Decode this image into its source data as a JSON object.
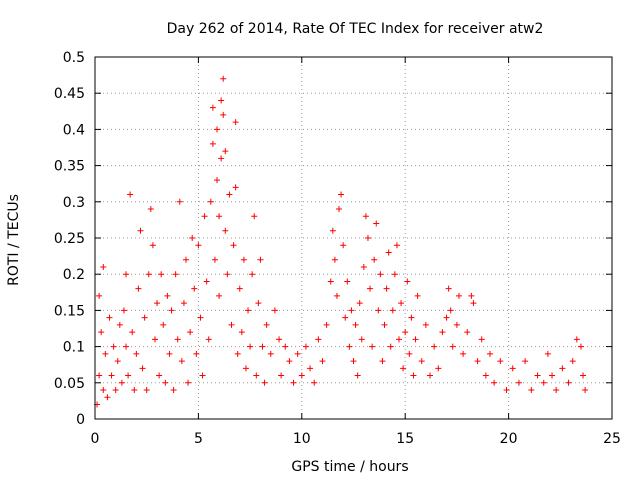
{
  "chart_data": {
    "type": "scatter",
    "title": "Day 262 of 2014, Rate Of TEC Index for receiver atw2",
    "xlabel": "GPS time / hours",
    "ylabel": "ROTI / TECUs",
    "xlim": [
      0,
      25
    ],
    "ylim": [
      0,
      0.5
    ],
    "xticks": [
      0,
      5,
      10,
      15,
      20,
      25
    ],
    "yticks": [
      0,
      0.05,
      0.1,
      0.15,
      0.2,
      0.25,
      0.3,
      0.35,
      0.4,
      0.45,
      0.5
    ],
    "xtick_labels": [
      "0",
      "5",
      "10",
      "15",
      "20",
      "25"
    ],
    "ytick_labels": [
      "0",
      "0.05",
      "0.1",
      "0.15",
      "0.2",
      "0.25",
      "0.3",
      "0.35",
      "0.4",
      "0.45",
      "0.5"
    ],
    "grid": true,
    "legend": "none",
    "marker": "plus",
    "color": "#ff0000",
    "series": [
      {
        "points": [
          [
            0.1,
            0.02
          ],
          [
            0.2,
            0.06
          ],
          [
            0.2,
            0.17
          ],
          [
            0.3,
            0.12
          ],
          [
            0.4,
            0.04
          ],
          [
            0.4,
            0.21
          ],
          [
            0.5,
            0.09
          ],
          [
            0.6,
            0.03
          ],
          [
            0.7,
            0.14
          ],
          [
            0.8,
            0.06
          ],
          [
            0.9,
            0.1
          ],
          [
            1.0,
            0.04
          ],
          [
            1.1,
            0.08
          ],
          [
            1.2,
            0.13
          ],
          [
            1.3,
            0.05
          ],
          [
            1.4,
            0.15
          ],
          [
            1.5,
            0.1
          ],
          [
            1.5,
            0.2
          ],
          [
            1.6,
            0.06
          ],
          [
            1.7,
            0.31
          ],
          [
            1.8,
            0.12
          ],
          [
            1.9,
            0.04
          ],
          [
            2.0,
            0.09
          ],
          [
            2.1,
            0.18
          ],
          [
            2.2,
            0.26
          ],
          [
            2.3,
            0.07
          ],
          [
            2.4,
            0.14
          ],
          [
            2.5,
            0.04
          ],
          [
            2.6,
            0.2
          ],
          [
            2.7,
            0.29
          ],
          [
            2.8,
            0.24
          ],
          [
            2.9,
            0.11
          ],
          [
            3.0,
            0.16
          ],
          [
            3.1,
            0.06
          ],
          [
            3.2,
            0.2
          ],
          [
            3.3,
            0.13
          ],
          [
            3.4,
            0.05
          ],
          [
            3.5,
            0.17
          ],
          [
            3.6,
            0.09
          ],
          [
            3.7,
            0.15
          ],
          [
            3.8,
            0.04
          ],
          [
            3.9,
            0.2
          ],
          [
            4.0,
            0.11
          ],
          [
            4.1,
            0.3
          ],
          [
            4.2,
            0.08
          ],
          [
            4.3,
            0.16
          ],
          [
            4.4,
            0.22
          ],
          [
            4.5,
            0.05
          ],
          [
            4.6,
            0.12
          ],
          [
            4.7,
            0.25
          ],
          [
            4.8,
            0.18
          ],
          [
            4.9,
            0.09
          ],
          [
            5.0,
            0.24
          ],
          [
            5.1,
            0.14
          ],
          [
            5.2,
            0.06
          ],
          [
            5.3,
            0.28
          ],
          [
            5.4,
            0.19
          ],
          [
            5.5,
            0.11
          ],
          [
            5.6,
            0.3
          ],
          [
            5.7,
            0.38
          ],
          [
            5.7,
            0.43
          ],
          [
            5.8,
            0.22
          ],
          [
            5.9,
            0.33
          ],
          [
            5.9,
            0.4
          ],
          [
            6.0,
            0.17
          ],
          [
            6.0,
            0.28
          ],
          [
            6.1,
            0.36
          ],
          [
            6.1,
            0.44
          ],
          [
            6.2,
            0.47
          ],
          [
            6.2,
            0.42
          ],
          [
            6.3,
            0.26
          ],
          [
            6.3,
            0.37
          ],
          [
            6.4,
            0.2
          ],
          [
            6.5,
            0.31
          ],
          [
            6.6,
            0.13
          ],
          [
            6.7,
            0.24
          ],
          [
            6.8,
            0.41
          ],
          [
            6.8,
            0.32
          ],
          [
            6.9,
            0.09
          ],
          [
            7.0,
            0.18
          ],
          [
            7.1,
            0.12
          ],
          [
            7.2,
            0.22
          ],
          [
            7.3,
            0.07
          ],
          [
            7.4,
            0.15
          ],
          [
            7.5,
            0.1
          ],
          [
            7.6,
            0.2
          ],
          [
            7.7,
            0.28
          ],
          [
            7.8,
            0.06
          ],
          [
            7.9,
            0.16
          ],
          [
            8.0,
            0.22
          ],
          [
            8.1,
            0.1
          ],
          [
            8.2,
            0.05
          ],
          [
            8.3,
            0.13
          ],
          [
            8.5,
            0.09
          ],
          [
            8.7,
            0.15
          ],
          [
            8.9,
            0.11
          ],
          [
            9.0,
            0.06
          ],
          [
            9.2,
            0.1
          ],
          [
            9.4,
            0.08
          ],
          [
            9.6,
            0.05
          ],
          [
            9.8,
            0.09
          ],
          [
            10.0,
            0.06
          ],
          [
            10.2,
            0.1
          ],
          [
            10.4,
            0.07
          ],
          [
            10.6,
            0.05
          ],
          [
            10.8,
            0.11
          ],
          [
            11.0,
            0.08
          ],
          [
            11.2,
            0.13
          ],
          [
            11.4,
            0.19
          ],
          [
            11.5,
            0.26
          ],
          [
            11.6,
            0.22
          ],
          [
            11.7,
            0.17
          ],
          [
            11.8,
            0.29
          ],
          [
            11.9,
            0.31
          ],
          [
            12.0,
            0.24
          ],
          [
            12.1,
            0.14
          ],
          [
            12.2,
            0.19
          ],
          [
            12.3,
            0.1
          ],
          [
            12.4,
            0.15
          ],
          [
            12.5,
            0.08
          ],
          [
            12.6,
            0.13
          ],
          [
            12.7,
            0.06
          ],
          [
            12.8,
            0.16
          ],
          [
            12.9,
            0.11
          ],
          [
            13.0,
            0.21
          ],
          [
            13.1,
            0.28
          ],
          [
            13.2,
            0.25
          ],
          [
            13.3,
            0.18
          ],
          [
            13.4,
            0.1
          ],
          [
            13.5,
            0.22
          ],
          [
            13.6,
            0.27
          ],
          [
            13.7,
            0.15
          ],
          [
            13.8,
            0.2
          ],
          [
            13.9,
            0.08
          ],
          [
            14.0,
            0.13
          ],
          [
            14.1,
            0.18
          ],
          [
            14.2,
            0.23
          ],
          [
            14.3,
            0.1
          ],
          [
            14.4,
            0.15
          ],
          [
            14.5,
            0.2
          ],
          [
            14.6,
            0.24
          ],
          [
            14.7,
            0.11
          ],
          [
            14.8,
            0.16
          ],
          [
            14.9,
            0.07
          ],
          [
            15.0,
            0.12
          ],
          [
            15.1,
            0.19
          ],
          [
            15.2,
            0.09
          ],
          [
            15.3,
            0.14
          ],
          [
            15.4,
            0.06
          ],
          [
            15.5,
            0.11
          ],
          [
            15.6,
            0.17
          ],
          [
            15.8,
            0.08
          ],
          [
            16.0,
            0.13
          ],
          [
            16.2,
            0.06
          ],
          [
            16.4,
            0.1
          ],
          [
            16.6,
            0.07
          ],
          [
            16.8,
            0.12
          ],
          [
            17.0,
            0.14
          ],
          [
            17.1,
            0.18
          ],
          [
            17.2,
            0.15
          ],
          [
            17.3,
            0.1
          ],
          [
            17.5,
            0.13
          ],
          [
            17.6,
            0.17
          ],
          [
            17.8,
            0.09
          ],
          [
            18.0,
            0.12
          ],
          [
            18.2,
            0.17
          ],
          [
            18.3,
            0.16
          ],
          [
            18.5,
            0.08
          ],
          [
            18.7,
            0.11
          ],
          [
            18.9,
            0.06
          ],
          [
            19.1,
            0.09
          ],
          [
            19.3,
            0.05
          ],
          [
            19.6,
            0.08
          ],
          [
            19.9,
            0.04
          ],
          [
            20.2,
            0.07
          ],
          [
            20.5,
            0.05
          ],
          [
            20.8,
            0.08
          ],
          [
            21.1,
            0.04
          ],
          [
            21.4,
            0.06
          ],
          [
            21.7,
            0.05
          ],
          [
            21.9,
            0.09
          ],
          [
            22.1,
            0.06
          ],
          [
            22.3,
            0.04
          ],
          [
            22.6,
            0.07
          ],
          [
            22.9,
            0.05
          ],
          [
            23.1,
            0.08
          ],
          [
            23.3,
            0.11
          ],
          [
            23.5,
            0.1
          ],
          [
            23.6,
            0.06
          ],
          [
            23.7,
            0.04
          ]
        ]
      }
    ]
  }
}
